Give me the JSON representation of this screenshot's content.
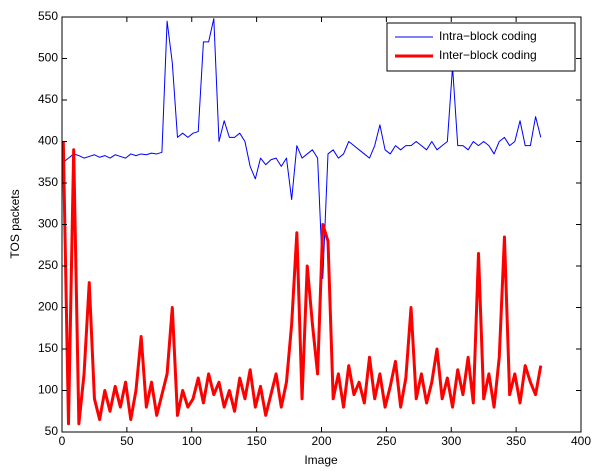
{
  "chart_data": {
    "type": "line",
    "xlabel": "Image",
    "ylabel": "TOS packets",
    "x": [
      1,
      5,
      9,
      13,
      17,
      21,
      25,
      29,
      33,
      37,
      41,
      45,
      49,
      53,
      57,
      61,
      65,
      69,
      73,
      77,
      81,
      85,
      89,
      93,
      97,
      101,
      105,
      109,
      113,
      117,
      121,
      125,
      129,
      133,
      137,
      141,
      145,
      149,
      153,
      157,
      161,
      165,
      169,
      173,
      177,
      181,
      185,
      189,
      193,
      197,
      201,
      205,
      209,
      213,
      217,
      221,
      225,
      229,
      233,
      237,
      241,
      245,
      249,
      253,
      257,
      261,
      265,
      269,
      273,
      277,
      281,
      285,
      289,
      293,
      297,
      301,
      305,
      309,
      313,
      317,
      321,
      325,
      329,
      333,
      337,
      341,
      345,
      349,
      353,
      357,
      361,
      365,
      369
    ],
    "series": [
      {
        "name": "Intra−block coding",
        "color": "#0000ff",
        "line_width": 1,
        "values": [
          375,
          380,
          385,
          383,
          380,
          382,
          384,
          381,
          383,
          380,
          384,
          382,
          380,
          385,
          383,
          385,
          384,
          386,
          385,
          387,
          545,
          495,
          405,
          410,
          405,
          410,
          412,
          520,
          520,
          548,
          400,
          425,
          405,
          405,
          410,
          400,
          370,
          355,
          380,
          372,
          378,
          380,
          370,
          380,
          330,
          395,
          380,
          385,
          390,
          380,
          235,
          385,
          390,
          380,
          385,
          400,
          395,
          390,
          385,
          380,
          395,
          420,
          390,
          385,
          395,
          390,
          395,
          395,
          400,
          395,
          390,
          400,
          390,
          395,
          400,
          490,
          395,
          395,
          390,
          400,
          395,
          400,
          395,
          385,
          400,
          405,
          395,
          400,
          425,
          395,
          395,
          430,
          405
        ]
      },
      {
        "name": "Inter−block coding",
        "color": "#ff0000",
        "line_width": 3,
        "values": [
          400,
          60,
          390,
          60,
          120,
          230,
          90,
          65,
          100,
          75,
          105,
          80,
          110,
          65,
          100,
          165,
          80,
          110,
          70,
          95,
          120,
          200,
          70,
          100,
          80,
          90,
          115,
          85,
          120,
          95,
          110,
          80,
          100,
          75,
          115,
          90,
          125,
          80,
          105,
          70,
          95,
          120,
          80,
          110,
          180,
          290,
          90,
          250,
          180,
          120,
          300,
          280,
          90,
          120,
          80,
          130,
          95,
          110,
          85,
          140,
          90,
          120,
          80,
          105,
          135,
          80,
          115,
          200,
          90,
          120,
          85,
          110,
          150,
          90,
          115,
          80,
          125,
          95,
          140,
          85,
          265,
          90,
          120,
          80,
          140,
          285,
          95,
          120,
          85,
          130,
          110,
          95,
          130
        ]
      }
    ],
    "xlim": [
      0,
      400
    ],
    "xticks": [
      0,
      50,
      100,
      150,
      200,
      250,
      300,
      350,
      400
    ],
    "ylim": [
      50,
      550
    ],
    "yticks": [
      50,
      100,
      150,
      200,
      250,
      300,
      350,
      400,
      450,
      500,
      550
    ],
    "legend": "northeast"
  }
}
